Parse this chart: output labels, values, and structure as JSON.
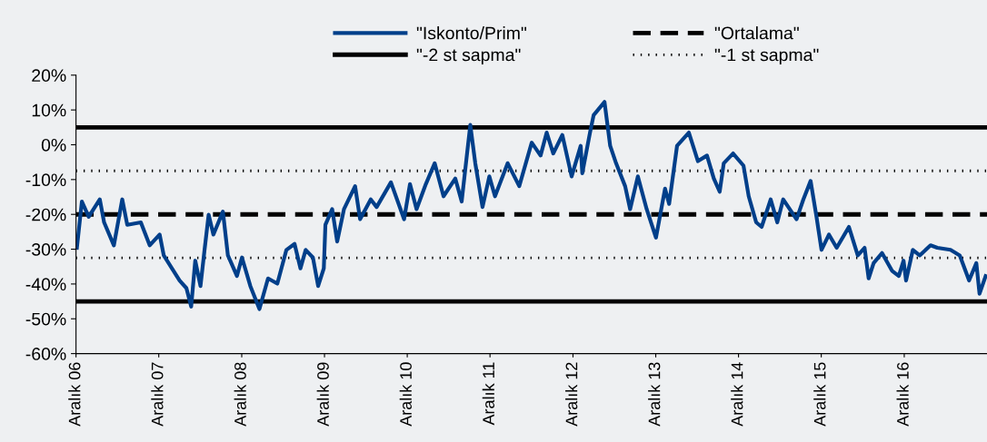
{
  "chart_data": {
    "type": "line",
    "x": [
      "2006-12-05",
      "2006-12-27",
      "2007-01-26",
      "2007-03-16",
      "2007-04-04",
      "2007-05-17",
      "2007-06-23",
      "2007-07-15",
      "2007-09-13",
      "2007-10-22",
      "2007-12-05",
      "2007-12-23",
      "2008-03-02",
      "2008-04-01",
      "2008-04-22",
      "2008-05-10",
      "2008-06-02",
      "2008-06-20",
      "2008-07-08",
      "2008-07-29",
      "2008-09-09",
      "2008-10-01",
      "2008-11-10",
      "2008-12-02",
      "2009-01-08",
      "2009-02-17",
      "2009-03-27",
      "2009-05-07",
      "2009-06-16",
      "2009-07-22",
      "2009-08-17",
      "2009-09-09",
      "2009-10-11",
      "2009-11-03",
      "2009-11-28",
      "2009-12-05",
      "2010-01-04",
      "2010-01-26",
      "2010-02-25",
      "2010-04-15",
      "2010-05-07",
      "2010-06-23",
      "2010-07-19",
      "2010-09-20",
      "2010-11-17",
      "2010-12-13",
      "2011-01-11",
      "2011-02-21",
      "2011-04-01",
      "2011-05-10",
      "2011-07-01",
      "2011-07-29",
      "2011-09-05",
      "2011-09-27",
      "2011-10-29",
      "2011-11-28",
      "2011-12-23",
      "2012-02-17",
      "2012-04-08",
      "2012-06-02",
      "2012-07-11",
      "2012-08-07",
      "2012-09-05",
      "2012-10-15",
      "2012-11-25",
      "2013-01-04",
      "2013-01-11",
      "2013-02-14",
      "2013-03-02",
      "2013-04-19",
      "2013-05-14",
      "2013-06-09",
      "2013-07-19",
      "2013-08-10",
      "2013-09-13",
      "2013-10-22",
      "2013-12-02",
      "2014-01-11",
      "2014-01-29",
      "2014-03-05",
      "2014-04-26",
      "2014-06-05",
      "2014-07-15",
      "2014-08-14",
      "2014-09-09",
      "2014-09-27",
      "2014-11-07",
      "2014-12-23",
      "2015-01-15",
      "2015-02-17",
      "2015-03-13",
      "2015-04-22",
      "2015-05-21",
      "2015-06-16",
      "2015-08-14",
      "2015-09-13",
      "2015-10-15",
      "2015-11-10",
      "2015-12-02",
      "2016-01-04",
      "2016-02-07",
      "2016-04-01",
      "2016-05-10",
      "2016-06-09",
      "2016-06-27",
      "2016-07-19",
      "2016-08-25",
      "2016-10-08",
      "2016-11-07",
      "2016-11-28",
      "2016-12-09",
      "2017-01-08",
      "2017-02-07",
      "2017-03-27",
      "2017-04-26",
      "2017-06-23",
      "2017-08-03",
      "2017-09-13",
      "2017-10-15",
      "2017-10-29",
      "2017-11-25"
    ],
    "series": [
      {
        "name": "\"Iskonto/Prim\"",
        "color": "#003f8a",
        "values": [
          -29.6,
          -16.3,
          -20.7,
          -15.7,
          -22.3,
          -28.9,
          -15.7,
          -23,
          -22.3,
          -28.9,
          -25.8,
          -31.8,
          -39,
          -41.2,
          -46.5,
          -33.3,
          -40.6,
          -30.2,
          -20.1,
          -25.8,
          -19.2,
          -31.8,
          -37.7,
          -32.4,
          -40.6,
          -47.2,
          -38.4,
          -39.9,
          -30.2,
          -28.5,
          -35.5,
          -30.2,
          -32.4,
          -40.6,
          -35.5,
          -23,
          -18.5,
          -27.8,
          -18.5,
          -11.9,
          -21.4,
          -15.7,
          -17.9,
          -10.8,
          -21.4,
          -11.3,
          -18.5,
          -11.3,
          -5.3,
          -14.8,
          -9.7,
          -16.3,
          5.7,
          -5.3,
          -17.9,
          -9.1,
          -14.8,
          -5.3,
          -11.9,
          0.6,
          -3.1,
          3.5,
          -2.5,
          2.8,
          -9.1,
          -0.3,
          -8.2,
          3.5,
          8.5,
          12.3,
          -0.3,
          -5.3,
          -11.9,
          -18.5,
          -9.1,
          -18.5,
          -26.7,
          -12.6,
          -17,
          -0.3,
          3.5,
          -4.7,
          -3.1,
          -9.7,
          -13.5,
          -5.3,
          -2.5,
          -6,
          -14.8,
          -22.3,
          -23.6,
          -15.7,
          -22.3,
          -15.7,
          -21.4,
          -15.7,
          -10.4,
          -20.7,
          -30.2,
          -25.8,
          -29.6,
          -23.6,
          -31.8,
          -29.6,
          -38.4,
          -34,
          -31.1,
          -36.2,
          -37.7,
          -33.3,
          -39,
          -30.2,
          -31.8,
          -28.9,
          -29.6,
          -30.2,
          -31.8,
          -39,
          -34,
          -42.8,
          -37.7
        ]
      }
    ],
    "xlim": [
      "2006-12",
      "2017-12"
    ],
    "xticks": [
      {
        "value": "2006-12",
        "label": "Aralık 06"
      },
      {
        "value": "2007-12",
        "label": "Aralık 07"
      },
      {
        "value": "2008-12",
        "label": "Aralık 08"
      },
      {
        "value": "2009-12",
        "label": "Aralık 09"
      },
      {
        "value": "2010-12",
        "label": "Aralık 10"
      },
      {
        "value": "2011-12",
        "label": "Aralık 11"
      },
      {
        "value": "2012-12",
        "label": "Aralık 12"
      },
      {
        "value": "2013-12",
        "label": "Aralık 13"
      },
      {
        "value": "2014-12",
        "label": "Aralık 14"
      },
      {
        "value": "2015-12",
        "label": "Aralık 15"
      },
      {
        "value": "2016-12",
        "label": "Aralık 16"
      }
    ],
    "ylim": [
      -60,
      20
    ],
    "yticks": [
      {
        "value": 20,
        "label": "20%"
      },
      {
        "value": 10,
        "label": "10%"
      },
      {
        "value": 0,
        "label": "0%"
      },
      {
        "value": -10,
        "label": "-10%"
      },
      {
        "value": -20,
        "label": "-20%"
      },
      {
        "value": -30,
        "label": "-30%"
      },
      {
        "value": -40,
        "label": "-40%"
      },
      {
        "value": -50,
        "label": "-50%"
      },
      {
        "value": -60,
        "label": "-60%"
      }
    ],
    "ref_lines": [
      {
        "axis": "y",
        "value": -45,
        "label": "\"-2 st sapma\"",
        "color": "#000000",
        "line_style": "solid"
      },
      {
        "axis": "y",
        "value": 5,
        "label": null,
        "color": "#000000",
        "line_style": "solid"
      },
      {
        "axis": "y",
        "value": -20,
        "label": "\"Ortalama\"",
        "color": "#000000",
        "line_style": "dashed"
      },
      {
        "axis": "y",
        "value": -7.5,
        "label": "\"-1 st sapma\"",
        "color": "#000000",
        "line_style": "dotted"
      },
      {
        "axis": "y",
        "value": -32.5,
        "label": null,
        "color": "#000000",
        "line_style": "dotted"
      }
    ],
    "grid": false,
    "legend": "top",
    "line_style": "solid",
    "marker": "none"
  }
}
